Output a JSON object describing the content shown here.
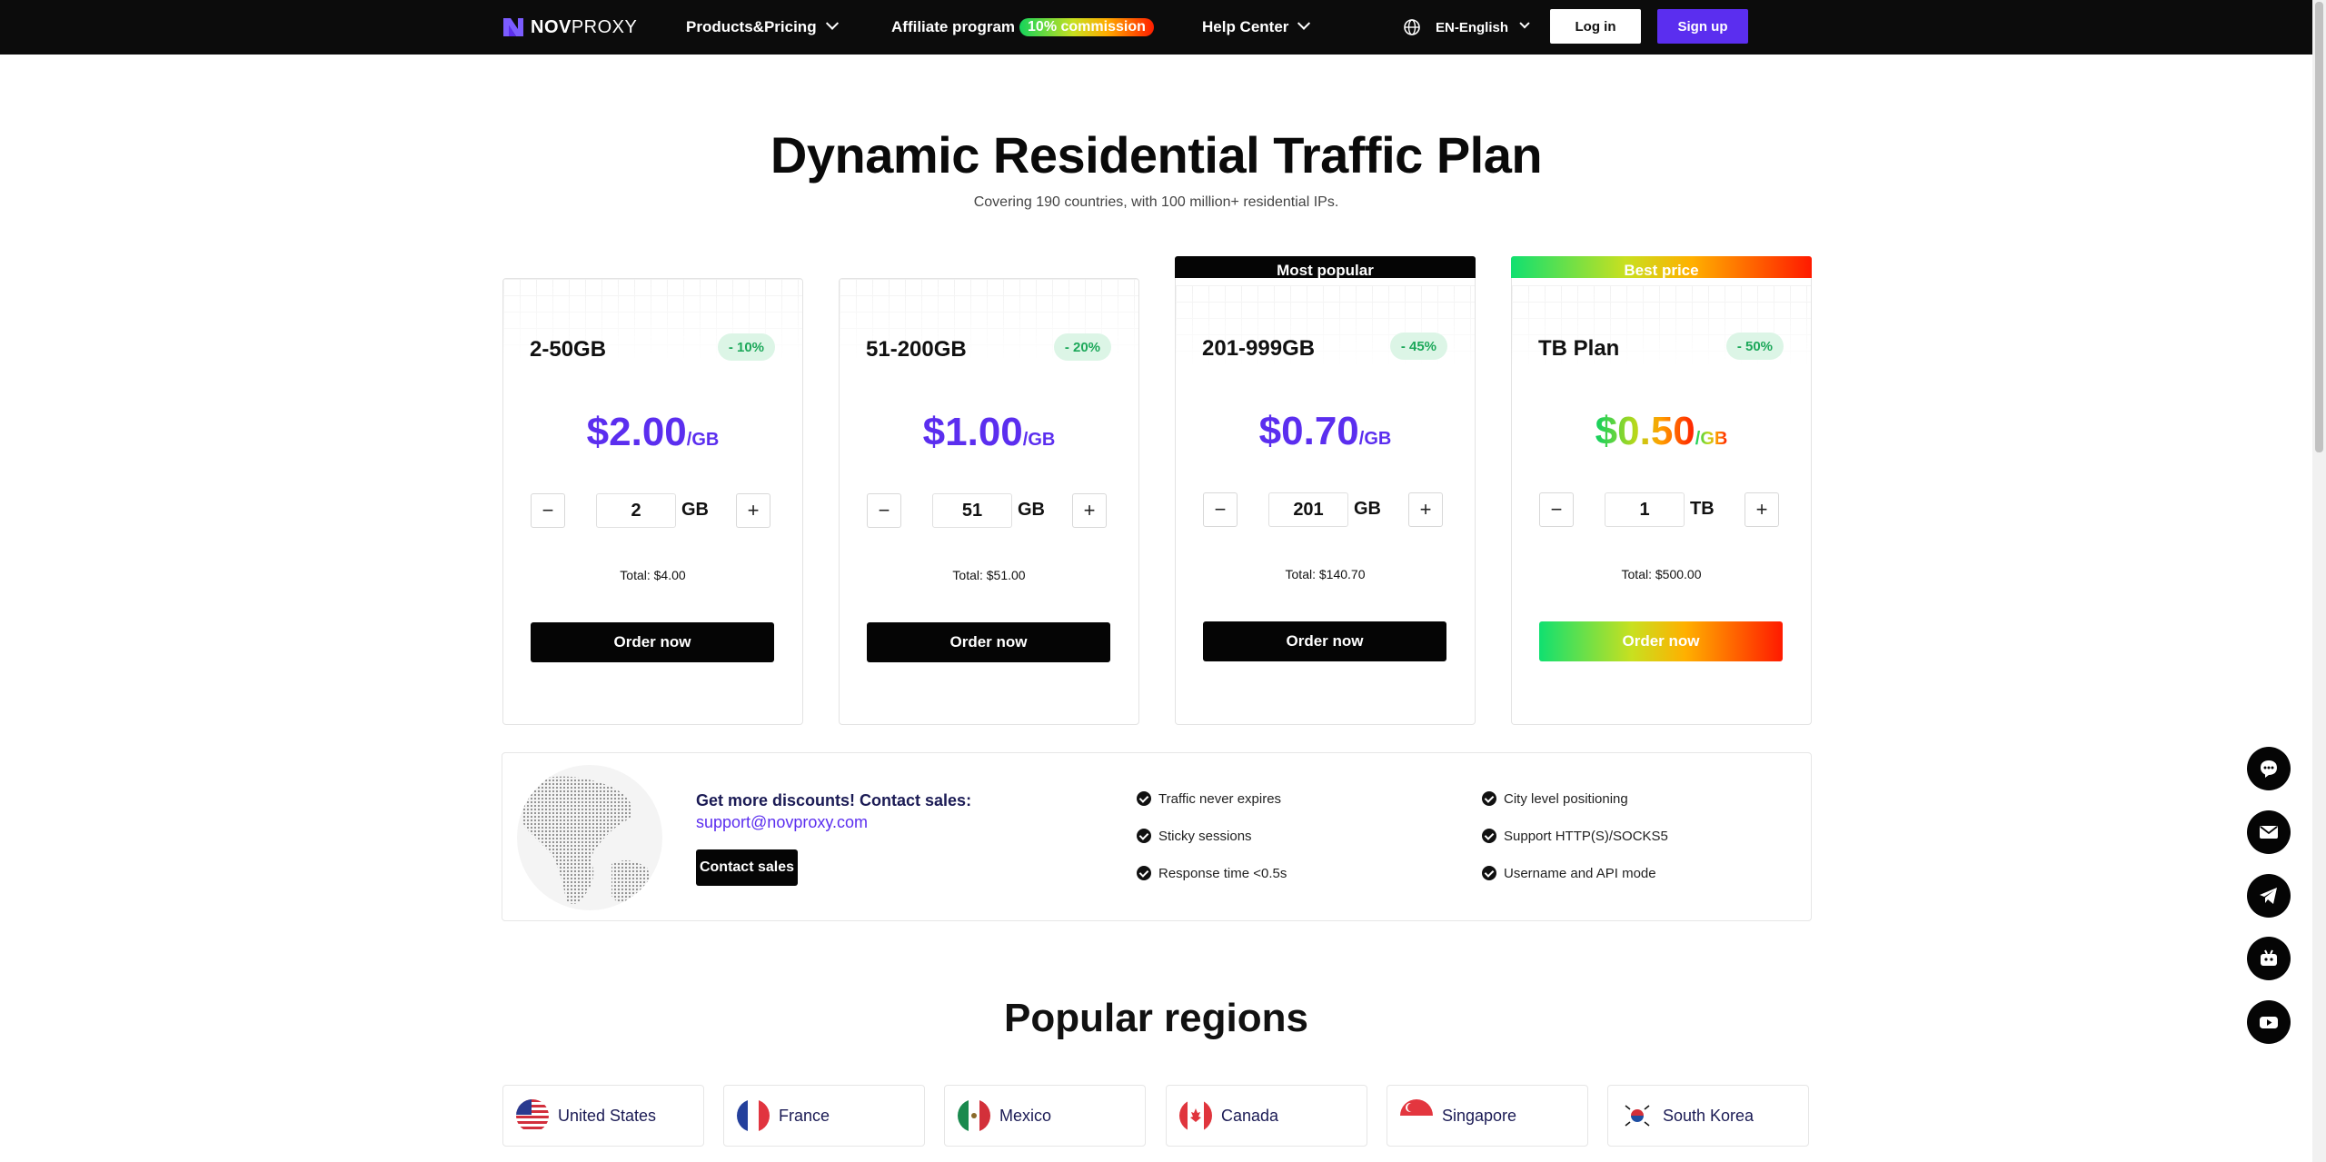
{
  "nav": {
    "logo_text_bold": "NOV",
    "logo_text": "PROXY",
    "products_label": "Products&Pricing",
    "affiliate_label": "Affiliate program",
    "affiliate_badge": "10% commission",
    "help_label": "Help Center",
    "language_label": "EN-English",
    "login_label": "Log in",
    "signup_label": "Sign up"
  },
  "hero": {
    "title": "Dynamic Residential Traffic Plan",
    "subtitle": "Covering 190 countries, with 100 million+ residential IPs."
  },
  "plans": [
    {
      "name": "2-50GB",
      "discount": "- 10%",
      "price": "$2.00",
      "unit": "/GB",
      "qty": "2",
      "qty_unit": "GB",
      "total": "Total: $4.00",
      "order_label": "Order now",
      "banner": ""
    },
    {
      "name": "51-200GB",
      "discount": "- 20%",
      "price": "$1.00",
      "unit": "/GB",
      "qty": "51",
      "qty_unit": "GB",
      "total": "Total: $51.00",
      "order_label": "Order now",
      "banner": ""
    },
    {
      "name": "201-999GB",
      "discount": "- 45%",
      "price": "$0.70",
      "unit": "/GB",
      "qty": "201",
      "qty_unit": "GB",
      "total": "Total: $140.70",
      "order_label": "Order now",
      "banner": "Most popular"
    },
    {
      "name": "TB Plan",
      "discount": "- 50%",
      "price": "$0.50",
      "unit": "/GB",
      "qty": "1",
      "qty_unit": "TB",
      "total": "Total: $500.00",
      "order_label": "Order now",
      "banner": "Best price"
    }
  ],
  "stepper": {
    "minus": "−",
    "plus": "+"
  },
  "contact": {
    "heading": "Get more discounts! Contact sales:",
    "email": "support@novproxy.com",
    "button_label": "Contact sales",
    "features": [
      "Traffic never expires",
      "Sticky sessions",
      "Response time <0.5s",
      "City level positioning",
      "Support HTTP(S)/SOCKS5",
      "Username and API mode"
    ]
  },
  "regions": {
    "title": "Popular regions",
    "items": [
      {
        "name": "United States",
        "flag": "us-flag-icon"
      },
      {
        "name": "France",
        "flag": "france-flag-icon"
      },
      {
        "name": "Mexico",
        "flag": "mexico-flag-icon"
      },
      {
        "name": "Canada",
        "flag": "canada-flag-icon"
      },
      {
        "name": "Singapore",
        "flag": "singapore-flag-icon"
      },
      {
        "name": "South Korea",
        "flag": "south-korea-flag-icon"
      }
    ]
  },
  "floating": [
    "chat-icon",
    "mail-icon",
    "telegram-icon",
    "bot-icon",
    "youtube-icon"
  ],
  "colors": {
    "brand_purple": "#5b2eef",
    "nav_bg": "#0c0c0c",
    "discount_green": "#1da85a",
    "discount_bg": "#dcf5e6"
  }
}
